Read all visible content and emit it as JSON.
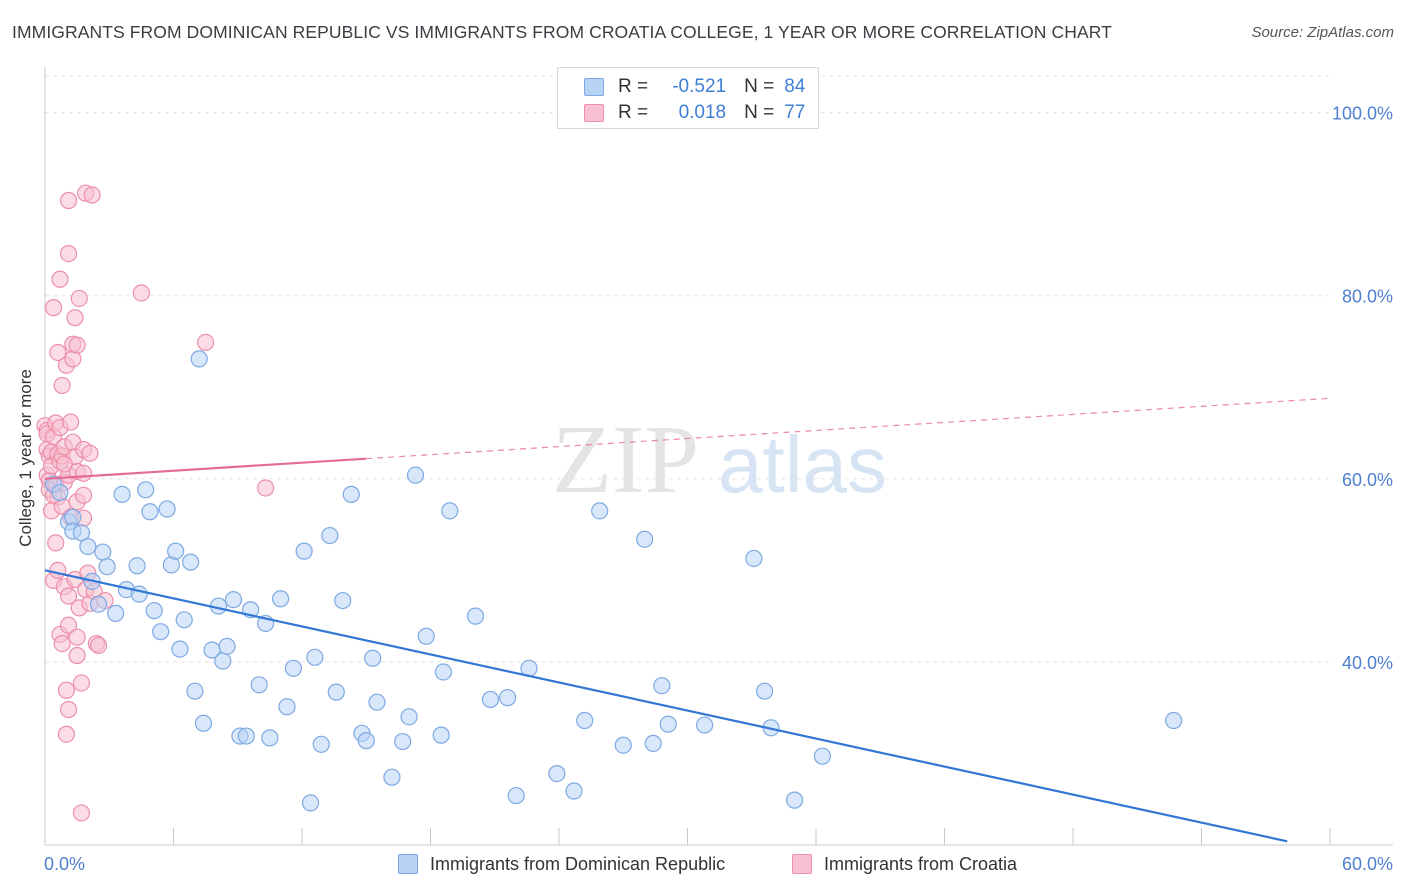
{
  "title": "IMMIGRANTS FROM DOMINICAN REPUBLIC VS IMMIGRANTS FROM CROATIA COLLEGE, 1 YEAR OR MORE CORRELATION CHART",
  "source": "Source: ZipAtlas.com",
  "watermark": {
    "zip": "ZIP",
    "atlas": "atlas"
  },
  "legend": {
    "r_label": "R =",
    "n_label": "N =",
    "rows": [
      {
        "r": "-0.521",
        "n": "84"
      },
      {
        "r": "0.018",
        "n": "77"
      }
    ]
  },
  "colors": {
    "blue_fill": "#b8d3f5",
    "blue_stroke": "#7ea9e2",
    "blue_line": "#3377d6",
    "pink_fill": "#f8c0d0",
    "pink_stroke": "#ec8fab",
    "pink_line": "#e46b93",
    "tick_text": "#4e7fd0",
    "grid": "#e4e4e4"
  },
  "chart_data": {
    "type": "scatter",
    "title": "IMMIGRANTS FROM DOMINICAN REPUBLIC VS IMMIGRANTS FROM CROATIA COLLEGE, 1 YEAR OR MORE CORRELATION CHART",
    "xlabel": "",
    "ylabel": "College, 1 year or more",
    "xlim": [
      0,
      60
    ],
    "ylim": [
      20,
      104
    ],
    "x_tick_labels": [
      "0.0%",
      "60.0%"
    ],
    "y_ticks": [
      40,
      60,
      80,
      100
    ],
    "y_tick_labels": [
      "40.0%",
      "60.0%",
      "80.0%",
      "100.0%"
    ],
    "grid": true,
    "series": [
      {
        "name": "Immigrants from Dominican Republic",
        "color": "blue",
        "r": -0.521,
        "n": 84,
        "trend": {
          "x0": 0,
          "y0": 50,
          "x1": 58,
          "y1": 20.4,
          "dashed_to": 58
        },
        "points": [
          [
            0.4,
            59.4
          ],
          [
            0.7,
            58.5
          ],
          [
            1.1,
            55.3
          ],
          [
            1.3,
            55.8
          ],
          [
            1.3,
            54.3
          ],
          [
            1.7,
            54.1
          ],
          [
            2.0,
            52.6
          ],
          [
            2.2,
            48.8
          ],
          [
            2.5,
            46.3
          ],
          [
            2.7,
            52.0
          ],
          [
            2.9,
            50.4
          ],
          [
            3.3,
            45.3
          ],
          [
            3.6,
            58.3
          ],
          [
            3.8,
            47.9
          ],
          [
            4.3,
            50.5
          ],
          [
            4.4,
            47.4
          ],
          [
            4.7,
            58.8
          ],
          [
            4.9,
            56.4
          ],
          [
            5.1,
            45.6
          ],
          [
            5.4,
            43.3
          ],
          [
            5.7,
            56.7
          ],
          [
            5.9,
            50.6
          ],
          [
            6.1,
            52.1
          ],
          [
            6.3,
            41.4
          ],
          [
            6.5,
            44.6
          ],
          [
            6.8,
            50.9
          ],
          [
            7.0,
            36.8
          ],
          [
            7.2,
            73.1
          ],
          [
            7.4,
            33.3
          ],
          [
            7.8,
            41.3
          ],
          [
            8.1,
            46.1
          ],
          [
            8.3,
            40.1
          ],
          [
            8.5,
            41.7
          ],
          [
            8.8,
            46.8
          ],
          [
            9.1,
            31.9
          ],
          [
            9.4,
            31.9
          ],
          [
            9.6,
            45.7
          ],
          [
            10.0,
            37.5
          ],
          [
            10.3,
            44.2
          ],
          [
            10.5,
            31.7
          ],
          [
            11.0,
            46.9
          ],
          [
            11.3,
            35.1
          ],
          [
            11.6,
            39.3
          ],
          [
            12.1,
            52.1
          ],
          [
            12.4,
            24.6
          ],
          [
            12.6,
            40.5
          ],
          [
            12.9,
            31.0
          ],
          [
            13.3,
            53.8
          ],
          [
            13.6,
            36.7
          ],
          [
            13.9,
            46.7
          ],
          [
            14.3,
            58.3
          ],
          [
            14.8,
            32.2
          ],
          [
            15.0,
            31.4
          ],
          [
            15.3,
            40.4
          ],
          [
            15.5,
            35.6
          ],
          [
            16.2,
            27.4
          ],
          [
            16.7,
            31.3
          ],
          [
            17.0,
            34.0
          ],
          [
            17.3,
            60.4
          ],
          [
            17.8,
            42.8
          ],
          [
            18.5,
            32.0
          ],
          [
            18.6,
            38.9
          ],
          [
            18.9,
            56.5
          ],
          [
            20.1,
            45.0
          ],
          [
            20.8,
            35.9
          ],
          [
            21.6,
            36.1
          ],
          [
            22.6,
            39.3
          ],
          [
            23.9,
            27.8
          ],
          [
            24.7,
            25.9
          ],
          [
            25.2,
            33.6
          ],
          [
            25.9,
            56.5
          ],
          [
            27.0,
            30.9
          ],
          [
            28.0,
            53.4
          ],
          [
            28.4,
            31.1
          ],
          [
            28.8,
            37.4
          ],
          [
            29.1,
            33.2
          ],
          [
            30.8,
            33.1
          ],
          [
            33.1,
            51.3
          ],
          [
            33.6,
            36.8
          ],
          [
            33.9,
            32.8
          ],
          [
            35.0,
            24.9
          ],
          [
            36.3,
            29.7
          ],
          [
            52.7,
            33.6
          ],
          [
            22.0,
            25.4
          ]
        ]
      },
      {
        "name": "Immigrants from Croatia",
        "color": "pink",
        "r": 0.018,
        "n": 77,
        "trend": {
          "x0": 0,
          "y0": 60,
          "x1": 15,
          "y1": 62.2,
          "dashed_to": 60
        },
        "points": [
          [
            0.0,
            65.8
          ],
          [
            0.1,
            65.3
          ],
          [
            0.1,
            64.9
          ],
          [
            0.1,
            63.2
          ],
          [
            0.1,
            60.4
          ],
          [
            0.2,
            62.5
          ],
          [
            0.2,
            59.8
          ],
          [
            0.2,
            58.8
          ],
          [
            0.3,
            62.9
          ],
          [
            0.3,
            61.4
          ],
          [
            0.3,
            56.5
          ],
          [
            0.4,
            64.6
          ],
          [
            0.4,
            78.7
          ],
          [
            0.4,
            48.9
          ],
          [
            0.5,
            66.1
          ],
          [
            0.5,
            59.4
          ],
          [
            0.5,
            53.0
          ],
          [
            0.6,
            73.8
          ],
          [
            0.6,
            62.7
          ],
          [
            0.6,
            58.0
          ],
          [
            0.6,
            50.0
          ],
          [
            0.7,
            81.8
          ],
          [
            0.7,
            65.6
          ],
          [
            0.7,
            61.9
          ],
          [
            0.7,
            43.0
          ],
          [
            0.8,
            70.2
          ],
          [
            0.8,
            62.5
          ],
          [
            0.8,
            57.0
          ],
          [
            0.8,
            42.0
          ],
          [
            0.9,
            63.5
          ],
          [
            0.9,
            59.6
          ],
          [
            0.9,
            48.2
          ],
          [
            1.0,
            72.4
          ],
          [
            1.0,
            36.9
          ],
          [
            1.0,
            32.1
          ],
          [
            1.1,
            84.6
          ],
          [
            1.1,
            90.4
          ],
          [
            1.1,
            60.4
          ],
          [
            1.1,
            47.2
          ],
          [
            1.1,
            44.0
          ],
          [
            1.1,
            34.8
          ],
          [
            1.2,
            66.2
          ],
          [
            1.2,
            55.8
          ],
          [
            1.3,
            73.1
          ],
          [
            1.3,
            74.7
          ],
          [
            1.3,
            64.0
          ],
          [
            1.4,
            77.6
          ],
          [
            1.4,
            62.4
          ],
          [
            1.4,
            49.0
          ],
          [
            1.5,
            74.6
          ],
          [
            1.5,
            60.8
          ],
          [
            1.5,
            57.5
          ],
          [
            1.5,
            42.7
          ],
          [
            1.5,
            40.7
          ],
          [
            1.6,
            79.7
          ],
          [
            1.6,
            45.9
          ],
          [
            1.7,
            37.7
          ],
          [
            1.7,
            23.5
          ],
          [
            1.8,
            63.2
          ],
          [
            1.8,
            60.6
          ],
          [
            1.8,
            58.2
          ],
          [
            1.8,
            55.7
          ],
          [
            1.9,
            91.2
          ],
          [
            1.9,
            47.9
          ],
          [
            2.0,
            49.7
          ],
          [
            2.1,
            46.4
          ],
          [
            2.1,
            62.8
          ],
          [
            2.2,
            91.0
          ],
          [
            2.3,
            47.7
          ],
          [
            2.4,
            42.0
          ],
          [
            2.5,
            41.8
          ],
          [
            2.8,
            46.7
          ],
          [
            4.5,
            80.3
          ],
          [
            7.5,
            74.9
          ],
          [
            10.3,
            59.0
          ],
          [
            0.4,
            58.2
          ],
          [
            0.9,
            61.6
          ]
        ]
      }
    ]
  },
  "bottom_legend": {
    "items": [
      "Immigrants from Dominican Republic",
      "Immigrants from Croatia"
    ]
  }
}
